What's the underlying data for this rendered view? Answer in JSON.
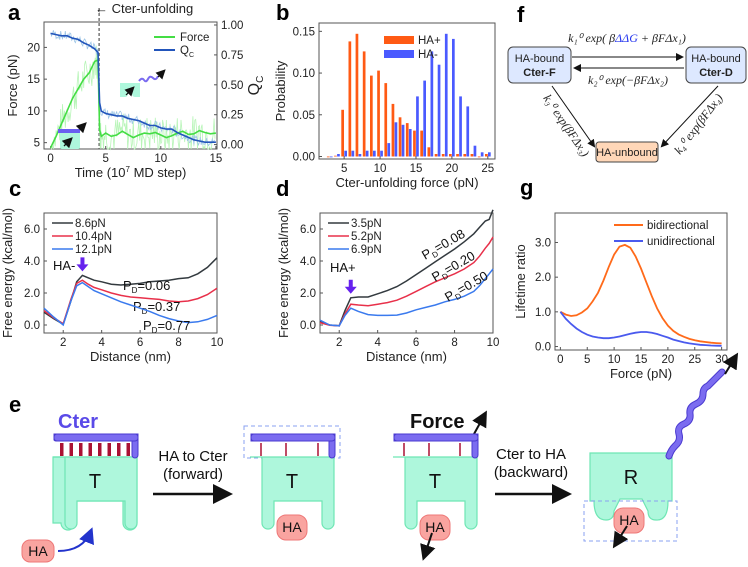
{
  "chart_data": [
    {
      "panel": "a",
      "type": "line",
      "xlabel": "Time (10^7 MD step)",
      "xlabel_parts": {
        "pre": "Time (10",
        "sup": "7",
        "post": " MD step)"
      },
      "ylabel": "Force (pN)",
      "y2label": "Q",
      "y2label_sub": "C",
      "xlim": [
        0,
        15
      ],
      "ylim": [
        4,
        24
      ],
      "y2lim": [
        0,
        1
      ],
      "xticks": [
        "0",
        "5",
        "10",
        "15"
      ],
      "yticks": [
        "5",
        "10",
        "15",
        "20"
      ],
      "y2ticks": [
        "0.00",
        "0.25",
        "0.50",
        "0.75",
        "1.00"
      ],
      "annotation": "← Cter-unfolding",
      "event_x": 4.4,
      "legend": [
        "Force",
        "QC"
      ],
      "legend_sub": "C",
      "series": [
        {
          "name": "Force",
          "color": "#44dd44",
          "x": [
            0,
            0.5,
            1,
            1.5,
            2,
            2.5,
            3,
            3.5,
            4,
            4.3,
            4.45,
            4.6,
            5,
            5.5,
            6,
            6.5,
            7,
            7.5,
            8,
            8.5,
            9,
            9.5,
            10,
            10.5,
            11,
            11.5,
            12,
            12.5,
            13,
            13.5,
            14,
            14.5,
            15
          ],
          "y": [
            4.2,
            6,
            8,
            10,
            12,
            13.5,
            15,
            16,
            17.8,
            18,
            7,
            6,
            6.5,
            6,
            6.2,
            6.8,
            6.3,
            5.8,
            6.2,
            6.5,
            6.4,
            6.6,
            6.2,
            5.8,
            6.1,
            6.5,
            6.8,
            6.3,
            6.4,
            6.9,
            6.6,
            6.4,
            6.5
          ]
        },
        {
          "name": "QC",
          "color": "#2255bb",
          "x": [
            0,
            0.5,
            1,
            1.5,
            2,
            2.5,
            3,
            3.5,
            4,
            4.3,
            4.45,
            4.6,
            5,
            5.5,
            6,
            6.5,
            7,
            7.5,
            8,
            8.5,
            9,
            9.5,
            10,
            10.5,
            11,
            11.5,
            12,
            12.5,
            13,
            13.5,
            14,
            14.5,
            15
          ],
          "y": [
            0.93,
            0.92,
            0.91,
            0.91,
            0.89,
            0.88,
            0.85,
            0.83,
            0.8,
            0.77,
            0.35,
            0.28,
            0.26,
            0.25,
            0.24,
            0.24,
            0.22,
            0.21,
            0.2,
            0.18,
            0.16,
            0.16,
            0.14,
            0.13,
            0.13,
            0.1,
            0.08,
            0.06,
            0.04,
            0.03,
            0.02,
            0.02,
            0.02
          ]
        }
      ]
    },
    {
      "panel": "b",
      "type": "bar",
      "xlabel": "Cter-unfolding force (pN)",
      "ylabel": "Probability",
      "xlim": [
        1.5,
        26
      ],
      "ylim": [
        -0.003,
        0.16
      ],
      "xticks": [
        "5",
        "10",
        "15",
        "20",
        "25"
      ],
      "yticks": [
        "0.00",
        "0.05",
        "0.10",
        "0.15"
      ],
      "series": [
        {
          "name": "HA+",
          "color": "#ff5a14",
          "x": [
            3,
            4,
            5,
            6,
            7,
            8,
            9,
            10,
            11,
            12,
            13,
            14,
            15,
            16,
            17,
            18,
            19,
            20,
            21,
            22,
            23,
            24,
            25
          ],
          "values": [
            0.0,
            0.001,
            0.056,
            0.138,
            0.147,
            0.126,
            0.097,
            0.103,
            0.088,
            0.063,
            0.047,
            0.04,
            0.031,
            0.031,
            0.011,
            0.003,
            0.003,
            0.003,
            0.003,
            0.003,
            0.003,
            0.0,
            0.003
          ]
        },
        {
          "name": "HA-",
          "color": "#4a5aff",
          "x": [
            3,
            4,
            5,
            6,
            7,
            8,
            9,
            10,
            11,
            12,
            13,
            14,
            15,
            16,
            17,
            18,
            19,
            20,
            21,
            22,
            23,
            24,
            25
          ],
          "values": [
            0.0,
            0.003,
            0.007,
            0.007,
            0.003,
            0.007,
            0.007,
            0.007,
            0.016,
            0.041,
            0.038,
            0.033,
            0.072,
            0.091,
            0.126,
            0.11,
            0.147,
            0.141,
            0.072,
            0.06,
            0.013,
            0.005,
            0.005
          ]
        }
      ]
    },
    {
      "panel": "c",
      "type": "line",
      "xlabel": "Distance (nm)",
      "ylabel": "Free energy (kcal/mol)",
      "xlim": [
        1,
        10
      ],
      "ylim": [
        -0.5,
        7.0
      ],
      "xticks": [
        "2",
        "4",
        "6",
        "8",
        "10"
      ],
      "yticks": [
        "0.0",
        "2.0",
        "4.0",
        "6.0"
      ],
      "label": "HA-",
      "arrow_x": 3.0,
      "series": [
        {
          "name": "8.6pN",
          "color": "#333a3f",
          "pd_label": "0.06",
          "x": [
            1,
            1.5,
            2,
            2.4,
            2.7,
            3.0,
            3.3,
            3.6,
            4,
            4.5,
            5,
            5.5,
            6,
            6.5,
            7,
            7.5,
            8,
            8.5,
            9,
            9.5,
            10
          ],
          "y": [
            0.8,
            0.4,
            0.05,
            1.5,
            2.7,
            3.1,
            2.95,
            2.8,
            2.7,
            2.55,
            2.5,
            2.55,
            2.6,
            2.7,
            2.75,
            2.8,
            2.9,
            2.95,
            3.2,
            3.6,
            4.2
          ]
        },
        {
          "name": "10.4pN",
          "color": "#e8304a",
          "pd_label": "0.37",
          "x": [
            1,
            1.5,
            2,
            2.4,
            2.7,
            3.0,
            3.3,
            3.6,
            4,
            4.5,
            5,
            5.5,
            6,
            6.5,
            7,
            7.5,
            8,
            8.5,
            9,
            9.5,
            10
          ],
          "y": [
            0.9,
            0.45,
            0.08,
            1.6,
            2.6,
            2.8,
            2.55,
            2.35,
            2.2,
            2.0,
            1.85,
            1.75,
            1.7,
            1.65,
            1.6,
            1.5,
            1.45,
            1.5,
            1.65,
            1.9,
            2.3
          ]
        },
        {
          "name": "12.1pN",
          "color": "#3a7aee",
          "pd_label": "0.77",
          "x": [
            1,
            1.5,
            2,
            2.4,
            2.7,
            3.0,
            3.3,
            3.6,
            4,
            4.5,
            5,
            5.5,
            6,
            6.5,
            7,
            7.5,
            8,
            8.5,
            9,
            9.5,
            10
          ],
          "y": [
            1.05,
            0.5,
            0.0,
            1.5,
            2.45,
            2.65,
            2.4,
            2.15,
            1.95,
            1.7,
            1.45,
            1.25,
            1.05,
            0.85,
            0.6,
            0.4,
            0.25,
            0.15,
            0.2,
            0.35,
            0.6
          ]
        }
      ]
    },
    {
      "panel": "d",
      "type": "line",
      "xlabel": "Distance (nm)",
      "ylabel": "Free energy (kcal/mol)",
      "xlim": [
        1,
        10
      ],
      "ylim": [
        -0.5,
        7.0
      ],
      "xticks": [
        "2",
        "4",
        "6",
        "8",
        "10"
      ],
      "yticks": [
        "0.0",
        "2.0",
        "4.0",
        "6.0"
      ],
      "label": "HA+",
      "arrow_x": 2.6,
      "series": [
        {
          "name": "3.5pN",
          "color": "#333a3f",
          "pd_label": "0.08",
          "x": [
            1,
            1.5,
            2,
            2.3,
            2.6,
            3.0,
            3.5,
            4,
            4.5,
            5,
            5.5,
            6,
            6.5,
            7,
            7.5,
            8,
            8.5,
            9,
            9.3,
            9.6,
            9.8,
            10
          ],
          "y": [
            0.2,
            0.0,
            -0.05,
            0.9,
            1.7,
            1.75,
            1.75,
            1.95,
            2.15,
            2.4,
            2.75,
            3.15,
            3.55,
            3.95,
            4.35,
            4.75,
            5.2,
            5.7,
            6.1,
            6.5,
            6.6,
            7.2
          ]
        },
        {
          "name": "5.2pN",
          "color": "#e8304a",
          "pd_label": "0.20",
          "x": [
            1,
            1.5,
            2,
            2.3,
            2.6,
            3.0,
            3.5,
            4,
            4.5,
            5,
            5.5,
            6,
            6.5,
            7,
            7.5,
            8,
            8.5,
            9,
            9.3,
            9.6,
            9.8,
            10
          ],
          "y": [
            0.15,
            -0.02,
            -0.05,
            0.7,
            1.3,
            1.25,
            1.2,
            1.3,
            1.4,
            1.55,
            1.8,
            2.1,
            2.4,
            2.7,
            2.95,
            3.2,
            3.5,
            3.9,
            4.3,
            4.8,
            5.1,
            5.5
          ]
        },
        {
          "name": "6.9pN",
          "color": "#3a7aee",
          "pd_label": "0.50",
          "x": [
            1,
            1.5,
            2,
            2.3,
            2.6,
            3.0,
            3.5,
            4,
            4.5,
            5,
            5.5,
            6,
            6.5,
            7,
            7.5,
            8,
            8.5,
            9,
            9.3,
            9.6,
            9.8,
            10
          ],
          "y": [
            0.3,
            0.0,
            -0.05,
            0.6,
            1.05,
            0.85,
            0.65,
            0.6,
            0.6,
            0.62,
            0.75,
            0.95,
            1.1,
            1.25,
            1.45,
            1.6,
            1.8,
            2.1,
            2.45,
            2.9,
            3.2,
            3.5
          ]
        }
      ]
    },
    {
      "panel": "g",
      "type": "line",
      "xlabel": "Force (pN)",
      "ylabel": "Lifetime ratio",
      "xlim": [
        -1,
        31
      ],
      "ylim": [
        -0.1,
        3.85
      ],
      "xticks": [
        "0",
        "5",
        "10",
        "15",
        "20",
        "25",
        "30"
      ],
      "yticks": [
        "0.0",
        "1.0",
        "2.0",
        "3.0"
      ],
      "series": [
        {
          "name": "bidirectional",
          "color": "#ff6a1a",
          "x": [
            0,
            1,
            2,
            3,
            4,
            5,
            6,
            7,
            8,
            9,
            10,
            11,
            12,
            13,
            14,
            15,
            16,
            17,
            18,
            19,
            20,
            21,
            22,
            23,
            24,
            25,
            26,
            27,
            28,
            29,
            30
          ],
          "y": [
            1.0,
            0.92,
            0.88,
            0.9,
            0.98,
            1.1,
            1.3,
            1.55,
            1.9,
            2.3,
            2.65,
            2.88,
            2.93,
            2.85,
            2.6,
            2.25,
            1.85,
            1.45,
            1.1,
            0.82,
            0.6,
            0.45,
            0.35,
            0.28,
            0.22,
            0.18,
            0.15,
            0.13,
            0.11,
            0.1,
            0.09
          ]
        },
        {
          "name": "unidirectional",
          "color": "#4a5aee",
          "x": [
            0,
            1,
            2,
            3,
            4,
            5,
            6,
            7,
            8,
            9,
            10,
            11,
            12,
            13,
            14,
            15,
            16,
            17,
            18,
            19,
            20,
            21,
            22,
            23,
            24,
            25,
            26,
            27,
            28,
            29,
            30
          ],
          "y": [
            1.0,
            0.8,
            0.65,
            0.52,
            0.42,
            0.34,
            0.29,
            0.26,
            0.24,
            0.24,
            0.26,
            0.29,
            0.33,
            0.37,
            0.4,
            0.42,
            0.42,
            0.4,
            0.36,
            0.31,
            0.26,
            0.2,
            0.16,
            0.12,
            0.09,
            0.07,
            0.05,
            0.04,
            0.03,
            0.025,
            0.02
          ]
        }
      ]
    }
  ],
  "panel_labels": {
    "a": "a",
    "b": "b",
    "c": "c",
    "d": "d",
    "e": "e",
    "f": "f",
    "g": "g"
  },
  "scheme_f": {
    "state_bound_f": {
      "line1": "HA-bound",
      "line2": "Cter-F"
    },
    "state_bound_d": {
      "line1": "HA-bound",
      "line2": "Cter-D"
    },
    "state_unbound": "HA-unbound",
    "rate_1_pre": "k₁⁰ exp( β",
    "rate_1_ddg": "ΔΔG",
    "rate_1_post": " + βFΔx₁)",
    "rate_2": "k₂⁰ exp(−βFΔx₂)",
    "rate_3": "k₃⁰ exp(βFΔx₃)",
    "rate_4": "k₄⁰ exp(βFΔx₄)",
    "colors": {
      "bound_fill": "#dde8ff",
      "unbound_fill": "#ffd7b8",
      "state_sub": "#7a1a7a",
      "ddg": "#2233ee"
    }
  },
  "scheme_e": {
    "cter_label": "Cter",
    "force_label": "Force",
    "t_label": "T",
    "r_label": "R",
    "ha_label": "HA",
    "step1": {
      "line1": "HA to Cter",
      "line2": "(forward)"
    },
    "step2": {
      "line1": "Cter to HA",
      "line2": "(backward)"
    },
    "colors": {
      "protein": "#aef7dc",
      "protein_edge": "#6ee6b4",
      "cter": "#7b6cf0",
      "ha": "#f9a4a0",
      "contact": "#aa1133",
      "arrow_blue": "#2233cc"
    }
  }
}
